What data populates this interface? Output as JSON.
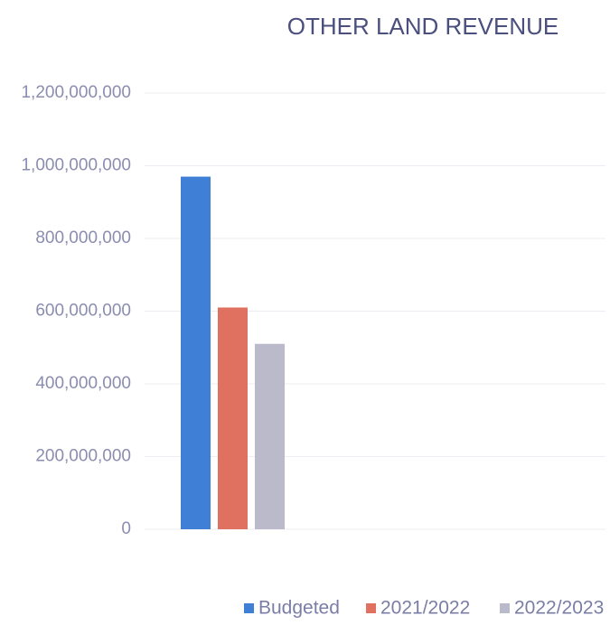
{
  "chart_data": {
    "type": "bar",
    "title": "OTHER LAND REVENUE",
    "categories": [
      null
    ],
    "series": [
      {
        "name": "Budgeted",
        "color": "#3f7fd5",
        "values": [
          970000000
        ]
      },
      {
        "name": "2021/2022",
        "color": "#e0705f",
        "values": [
          610000000
        ]
      },
      {
        "name": "2022/2023",
        "color": "#bbbacb",
        "values": [
          510000000
        ]
      }
    ],
    "ylim": [
      0,
      1200000000
    ],
    "yticks": [
      0,
      {
        "value": 200000000,
        "label": "200,000,000"
      },
      {
        "value": 400000000,
        "label": "400,000,000"
      },
      {
        "value": 600000000,
        "label": "600,000,000"
      },
      {
        "value": 800000000,
        "label": "800,000,000"
      },
      {
        "value": 1000000000,
        "label": "1,000,000,000"
      },
      {
        "value": 1200000000,
        "label": "1,200,000,000"
      }
    ],
    "grid": true,
    "legend": "bottom"
  }
}
